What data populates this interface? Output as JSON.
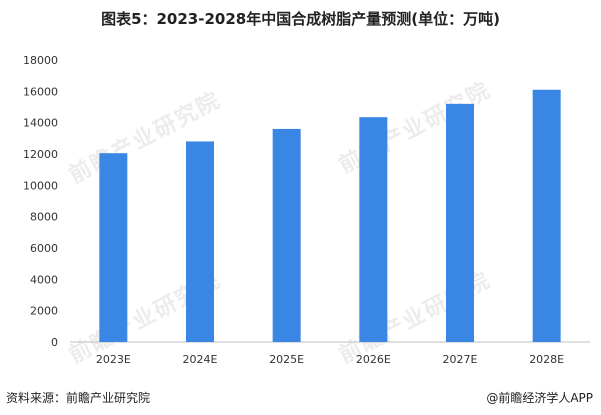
{
  "title": "图表5：2023-2028年中国合成树脂产量预测(单位：万吨)",
  "source": "资料来源：前瞻产业研究院",
  "brand": "@前瞻经济学人APP",
  "watermark": "前瞻产业研究院",
  "colors": {
    "bar": "#3A86E4",
    "axis": "#bfbfbf",
    "text": "#333333"
  },
  "chart_data": {
    "type": "bar",
    "categories": [
      "2023E",
      "2024E",
      "2025E",
      "2026E",
      "2027E",
      "2028E"
    ],
    "values": [
      12050,
      12800,
      13600,
      14350,
      15200,
      16100
    ],
    "ylim": [
      0,
      18000
    ],
    "yticks": [
      0,
      2000,
      4000,
      6000,
      8000,
      10000,
      12000,
      14000,
      16000,
      18000
    ],
    "grid": false
  }
}
